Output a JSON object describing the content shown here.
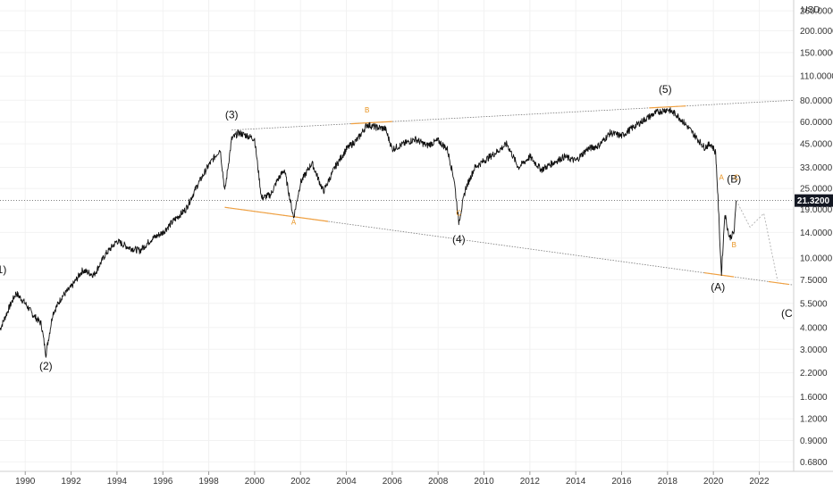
{
  "chart_data": {
    "type": "line",
    "scale": "log",
    "currency": "USD",
    "last_price": "21.3200",
    "y_ticks": [
      "260.0000",
      "200.0000",
      "150.0000",
      "110.0000",
      "80.0000",
      "60.0000",
      "45.0000",
      "33.0000",
      "25.0000",
      "19.0000",
      "14.0000",
      "10.0000",
      "7.5000",
      "5.5000",
      "4.0000",
      "3.0000",
      "2.2000",
      "1.6000",
      "1.2000",
      "0.9000",
      "0.6800"
    ],
    "y_tick_values": [
      260,
      200,
      150,
      110,
      80,
      60,
      45,
      33,
      25,
      19,
      14,
      10,
      7.5,
      5.5,
      4,
      3,
      2.2,
      1.6,
      1.2,
      0.9,
      0.68
    ],
    "x_ticks": [
      "1990",
      "1992",
      "1994",
      "1996",
      "1998",
      "2000",
      "2002",
      "2004",
      "2006",
      "2008",
      "2010",
      "2012",
      "2014",
      "2016",
      "2018",
      "2020",
      "2022"
    ],
    "x_tick_values": [
      1990,
      1992,
      1994,
      1996,
      1998,
      2000,
      2002,
      2004,
      2006,
      2008,
      2010,
      2012,
      2014,
      2016,
      2018,
      2020,
      2022
    ],
    "series": [
      {
        "x": [
          1988.9,
          1989.3,
          1989.6,
          1990.0,
          1990.3,
          1990.7,
          1990.9,
          1991.2,
          1991.6,
          1992.0,
          1992.5,
          1993.0,
          1993.5,
          1994.0,
          1994.5,
          1995.0,
          1995.5,
          1996.0,
          1996.5,
          1997.0,
          1997.5,
          1998.0,
          1998.5,
          1998.7,
          1999.0,
          1999.3,
          1999.7,
          2000.0,
          2000.3,
          2000.7,
          2001.0,
          2001.3,
          2001.7,
          2002.0,
          2002.5,
          2003.0,
          2003.5,
          2004.0,
          2004.5,
          2004.9,
          2005.3,
          2005.7,
          2006.0,
          2006.5,
          2007.0,
          2007.5,
          2008.0,
          2008.4,
          2008.7,
          2008.9,
          2009.2,
          2009.6,
          2010.0,
          2010.5,
          2011.0,
          2011.5,
          2012.0,
          2012.5,
          2013.0,
          2013.5,
          2014.0,
          2014.5,
          2015.0,
          2015.5,
          2016.0,
          2016.5,
          2017.0,
          2017.5,
          2018.0,
          2018.4,
          2018.8,
          2019.2,
          2019.6,
          2019.9,
          2020.1,
          2020.2,
          2020.35,
          2020.5,
          2020.7,
          2020.9,
          2021.0
        ],
        "values": [
          3.9,
          5.2,
          6.3,
          5.5,
          4.8,
          4.2,
          2.8,
          4.8,
          6.0,
          6.8,
          8.5,
          8.0,
          10.5,
          12.5,
          11.5,
          11.0,
          12.8,
          14.0,
          16.5,
          19.0,
          26.0,
          34.0,
          42.0,
          24.0,
          48.0,
          52.0,
          50.0,
          48.0,
          22.0,
          23.0,
          28.0,
          32.0,
          17.0,
          27.0,
          35.0,
          24.0,
          33.0,
          42.0,
          48.0,
          58.0,
          56.0,
          55.0,
          42.0,
          45.0,
          48.0,
          44.0,
          47.0,
          42.0,
          28.0,
          16.0,
          25.0,
          33.0,
          36.0,
          40.0,
          45.0,
          33.0,
          38.0,
          32.0,
          35.0,
          38.0,
          36.0,
          42.0,
          44.0,
          52.0,
          50.0,
          56.0,
          62.0,
          68.0,
          71.0,
          66.0,
          58.0,
          50.0,
          43.0,
          45.0,
          40.0,
          22.0,
          8.0,
          18.0,
          13.0,
          14.0,
          21.32
        ]
      }
    ],
    "ylim": [
      0.6,
      300
    ],
    "xlim": [
      1988.9,
      2023.5
    ],
    "annotations": {
      "wave_labels": [
        {
          "text": "(1)",
          "x": 1988.9,
          "y": 8.2
        },
        {
          "text": "(2)",
          "x": 1990.9,
          "y": 2.3
        },
        {
          "text": "(3)",
          "x": 1999.0,
          "y": 63
        },
        {
          "text": "(4)",
          "x": 2008.9,
          "y": 12.2
        },
        {
          "text": "(5)",
          "x": 2017.9,
          "y": 88
        },
        {
          "text": "(A)",
          "x": 2020.2,
          "y": 6.5
        },
        {
          "text": "(B)",
          "x": 2020.9,
          "y": 27.0
        },
        {
          "text": "(C",
          "x": 2023.2,
          "y": 4.6
        }
      ],
      "sub_labels": [
        {
          "text": "A",
          "x": 2001.7,
          "y": 15.5
        },
        {
          "text": "B",
          "x": 2004.9,
          "y": 68
        },
        {
          "text": "C",
          "x": 2008.9,
          "y": 17.5
        },
        {
          "text": "A",
          "x": 2020.35,
          "y": 28.0
        },
        {
          "text": "B",
          "x": 2020.9,
          "y": 11.5
        },
        {
          "text": "C",
          "x": 2021.0,
          "y": 28.0
        }
      ],
      "trendlines": {
        "upper": {
          "x1": 1999.0,
          "y1": 54,
          "x2": 2023.5,
          "y2": 80
        },
        "lower": {
          "x1": 1998.7,
          "y1": 19.5,
          "x2": 2023.5,
          "y2": 7.0
        }
      },
      "projection": [
        {
          "x": 2021.0,
          "y": 21.32
        },
        {
          "x": 2021.6,
          "y": 15.0
        },
        {
          "x": 2022.2,
          "y": 18.0
        },
        {
          "x": 2022.8,
          "y": 7.4
        }
      ]
    }
  }
}
